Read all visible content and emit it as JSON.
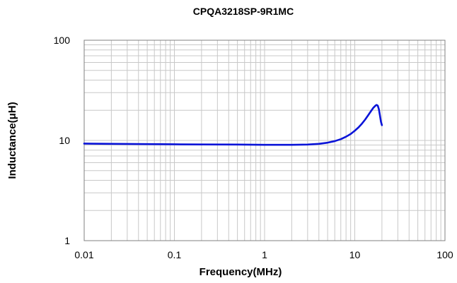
{
  "chart_data": {
    "type": "line",
    "title": "CPQA3218SP-9R1MC",
    "xlabel": "Frequency(MHz)",
    "ylabel": "Inductance(μH)",
    "x_scale": "log",
    "y_scale": "log",
    "xlim": [
      0.01,
      100
    ],
    "ylim": [
      1,
      100
    ],
    "x_ticks": [
      "0.01",
      "0.1",
      "1",
      "10",
      "100"
    ],
    "y_ticks": [
      "1",
      "10",
      "100"
    ],
    "grid": true,
    "legend": "none",
    "series": [
      {
        "color": "#0a14d8",
        "x": [
          0.01,
          0.02,
          0.05,
          0.1,
          0.2,
          0.5,
          1,
          2,
          3,
          4,
          5,
          6,
          7,
          8,
          9,
          10,
          11,
          12,
          13,
          14,
          15,
          16,
          17,
          17.5,
          18,
          18.5,
          19,
          19.5,
          20
        ],
        "y": [
          9.3,
          9.25,
          9.2,
          9.15,
          9.12,
          9.1,
          9.05,
          9.05,
          9.1,
          9.25,
          9.5,
          9.85,
          10.3,
          10.9,
          11.6,
          12.5,
          13.5,
          14.7,
          16.1,
          17.7,
          19.4,
          21.1,
          22.3,
          22.6,
          22.2,
          20.5,
          17.8,
          15.4,
          14.2
        ]
      }
    ]
  }
}
